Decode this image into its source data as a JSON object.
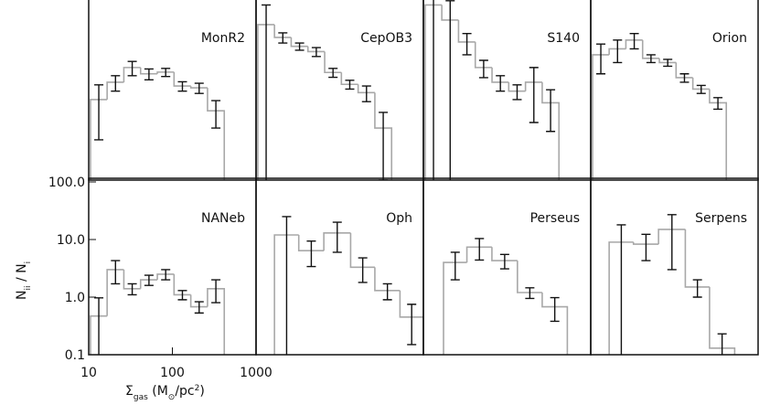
{
  "chart_data": [
    {
      "type": "histogram",
      "title": "MonR2",
      "bins": [
        10.5,
        16.6,
        26.3,
        41.7,
        66.1,
        104.7,
        166,
        263,
        417
      ],
      "values": [
        2.5,
        5,
        9,
        7,
        7.5,
        4.3,
        4,
        1.6
      ],
      "errors": [
        2,
        1.5,
        2.5,
        1.5,
        1.2,
        0.8,
        0.8,
        0.8
      ],
      "xlim": [
        10,
        1000
      ],
      "ylim": [
        0.1,
        100
      ],
      "log": true
    },
    {
      "type": "histogram",
      "title": "CepOB3",
      "bins": [
        10.5,
        16.6,
        26.3,
        41.7,
        66.1,
        104.7,
        166,
        263,
        417
      ],
      "values": [
        50,
        30,
        21,
        17,
        7.4,
        4.6,
        3.3,
        0.8
      ],
      "errors": [
        60,
        6,
        3,
        3,
        1.3,
        0.8,
        1,
        0.7
      ],
      "xlim": [
        10,
        1000
      ],
      "ylim": [
        0.1,
        100
      ],
      "log": true
    },
    {
      "type": "histogram",
      "title": "S140",
      "bins": [
        10.5,
        16.6,
        26.3,
        41.7,
        66.1,
        104.7,
        166,
        263,
        417
      ],
      "values": [
        110,
        60,
        25,
        9,
        5,
        3.5,
        5,
        2.2
      ],
      "errors": [
        150,
        70,
        10,
        3,
        1.5,
        1,
        4,
        1.5
      ],
      "xlim": [
        10,
        1000
      ],
      "ylim": [
        0.1,
        100
      ],
      "log": true
    },
    {
      "type": "histogram",
      "title": "Orion",
      "bins": [
        10.5,
        16.6,
        26.3,
        41.7,
        66.1,
        104.7,
        166,
        263,
        417
      ],
      "values": [
        15,
        19,
        27,
        13,
        11,
        6,
        3.8,
        2.2
      ],
      "errors": [
        8,
        8,
        8,
        2,
        1.5,
        1,
        0.6,
        0.5
      ],
      "xlim": [
        10,
        1000
      ],
      "ylim": [
        0.1,
        100
      ],
      "log": true
    },
    {
      "type": "histogram",
      "title": "NANeb",
      "bins": [
        10.5,
        16.6,
        26.3,
        41.7,
        66.1,
        104.7,
        166,
        263,
        417
      ],
      "values": [
        0.47,
        3.0,
        1.4,
        2.0,
        2.5,
        1.1,
        0.68,
        1.4
      ],
      "errors": [
        0.5,
        1.3,
        0.3,
        0.4,
        0.5,
        0.2,
        0.15,
        0.6
      ],
      "xlim": [
        10,
        1000
      ],
      "ylim": [
        0.1,
        100
      ],
      "log": true,
      "xticks": [
        10,
        100,
        1000
      ],
      "yticks": [
        {
          "value": 100,
          "label": "100.0"
        },
        {
          "value": 10,
          "label": "10.0"
        },
        {
          "value": 1,
          "label": "1.0"
        },
        0.1
      ],
      "xlabel": [
        {
          "text": "Σ"
        },
        {
          "text": "gas",
          "sub": true
        },
        {
          "text": " (M"
        },
        {
          "text": "⊙",
          "sub": true
        },
        {
          "text": "/pc"
        },
        {
          "text": "2",
          "sup": true
        },
        {
          "text": ")"
        }
      ],
      "ylabel": [
        {
          "text": "N"
        },
        {
          "text": "ii",
          "sub": true
        },
        {
          "text": " / N"
        },
        {
          "text": "i",
          "sub": true
        }
      ]
    },
    {
      "type": "histogram",
      "title": "Oph",
      "bins": [
        16.6,
        32.4,
        64.6,
        135,
        263,
        525,
        1000
      ],
      "values": [
        12,
        6.4,
        13,
        3.3,
        1.3,
        0.45
      ],
      "errors": [
        13,
        3,
        7,
        1.5,
        0.4,
        0.3
      ],
      "xlim": [
        10,
        1000
      ],
      "ylim": [
        0.1,
        100
      ],
      "log": true
    },
    {
      "type": "histogram",
      "title": "Perseus",
      "bins": [
        17.4,
        33.1,
        65.9,
        133,
        263,
        525
      ],
      "values": [
        4,
        7.4,
        4.3,
        1.2,
        0.68
      ],
      "errors": [
        2,
        3,
        1.2,
        0.25,
        0.3
      ],
      "xlim": [
        10,
        1000
      ],
      "ylim": [
        0.1,
        100
      ],
      "log": true
    },
    {
      "type": "histogram",
      "title": "Serpens",
      "bins": [
        16.6,
        32.4,
        64.6,
        135,
        263,
        525
      ],
      "values": [
        9,
        8.3,
        15,
        1.5,
        0.13
      ],
      "errors": [
        9,
        4,
        12,
        0.5,
        0.1
      ],
      "xlim": [
        10,
        1000
      ],
      "ylim": [
        0.1,
        100
      ],
      "log": true
    }
  ]
}
